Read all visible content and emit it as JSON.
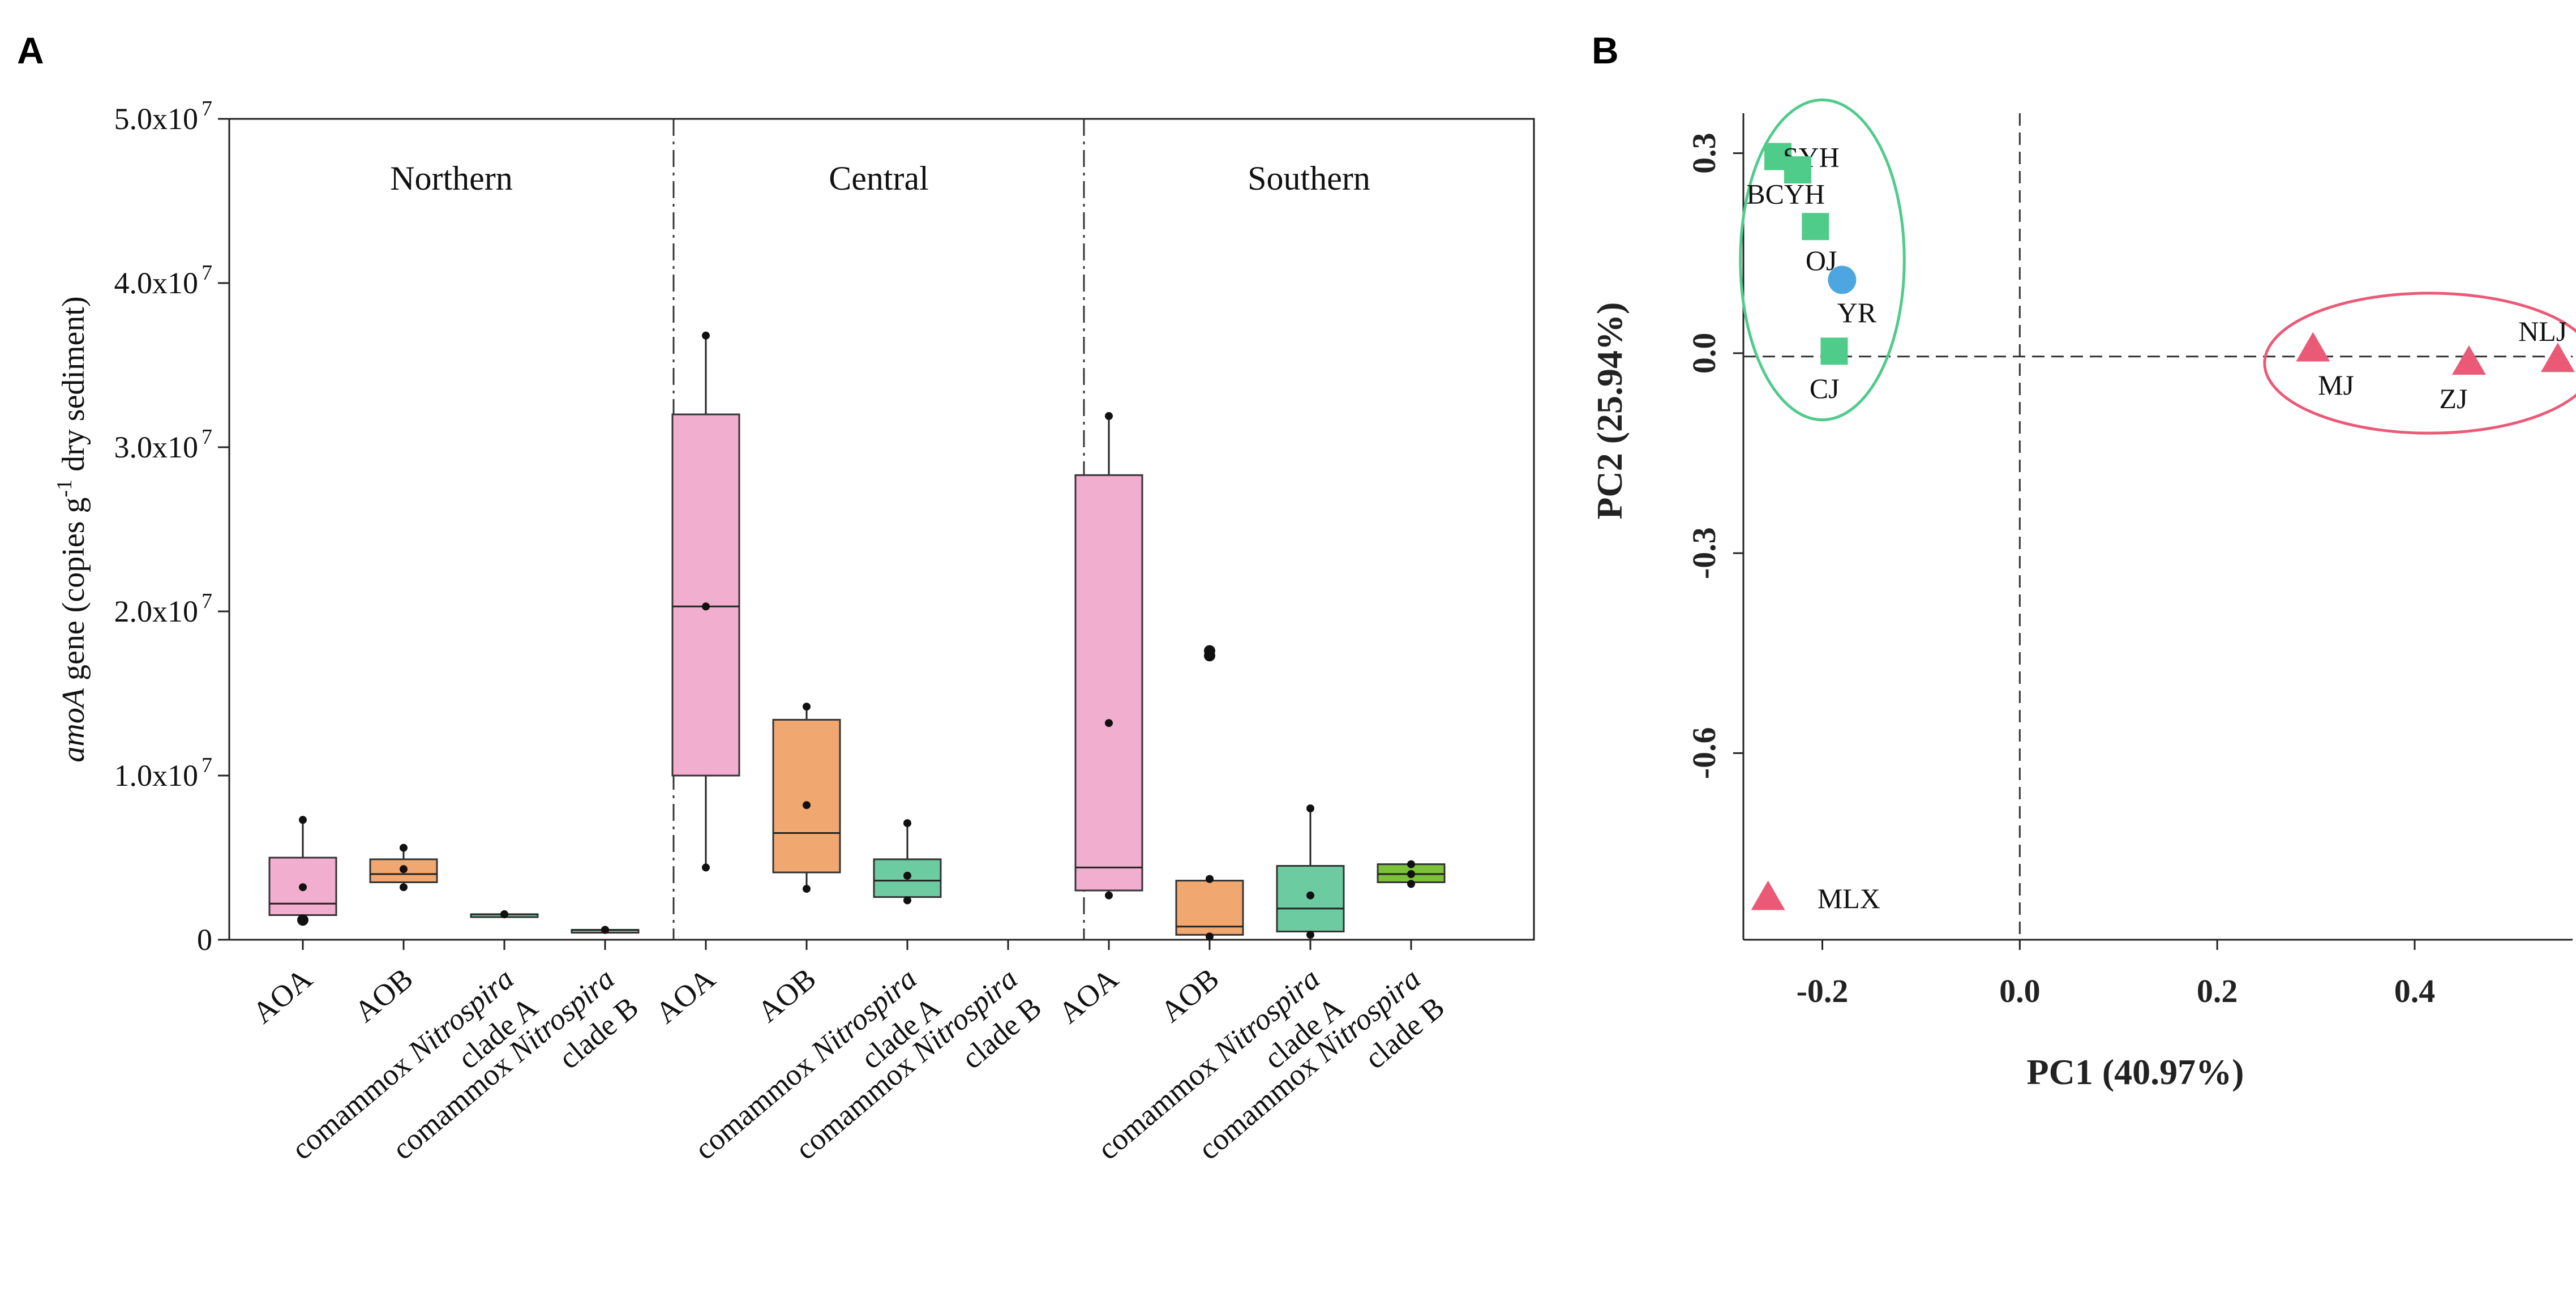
{
  "panel_labels": {
    "a": "A",
    "b": "B"
  },
  "chart_data": [
    {
      "type": "box",
      "panel": "A",
      "ylabel_parts": {
        "italic": "amoA",
        "gene": " gene  (copies g",
        "sup": "-1",
        "tail": " dry sediment)"
      },
      "ylim": [
        0,
        50000000
      ],
      "yticks": [
        {
          "value": 0,
          "label": "0",
          "exp": ""
        },
        {
          "value": 10000000,
          "label": "1.0x10",
          "exp": "7"
        },
        {
          "value": 20000000,
          "label": "2.0x10",
          "exp": "7"
        },
        {
          "value": 30000000,
          "label": "3.0x10",
          "exp": "7"
        },
        {
          "value": 40000000,
          "label": "4.0x10",
          "exp": "7"
        },
        {
          "value": 50000000,
          "label": "5.0x10",
          "exp": "7"
        }
      ],
      "regions": [
        "Northern",
        "Central",
        "Southern"
      ],
      "groups": [
        {
          "region": "Northern",
          "label": {
            "lines": [
              "AOA"
            ]
          },
          "color": "#f2aecf",
          "min": 1100000,
          "q1": 1500000,
          "median": 2200000,
          "q3": 5000000,
          "max": 7300000,
          "mean": 3200000,
          "outliers": [
            1200000
          ]
        },
        {
          "region": "Northern",
          "label": {
            "lines": [
              "AOB"
            ]
          },
          "color": "#f0a870",
          "min": 3200000,
          "q1": 3500000,
          "median": 4000000,
          "q3": 4900000,
          "max": 5600000,
          "mean": 4300000,
          "outliers": []
        },
        {
          "region": "Northern",
          "label": {
            "lines": [
              "comammox ",
              "clade A"
            ],
            "italic": "Nitrospira"
          },
          "color": "#6ccba0",
          "min": 1550000,
          "q1": 1550000,
          "median": 1550000,
          "q3": 1550000,
          "max": 1550000,
          "mean": 1550000,
          "outliers": []
        },
        {
          "region": "Northern",
          "label": {
            "lines": [
              "comammox ",
              "clade B"
            ],
            "italic": "Nitrospira"
          },
          "color": "#6ccba0",
          "min": 600000,
          "q1": 600000,
          "median": 600000,
          "q3": 600000,
          "max": 600000,
          "mean": 600000,
          "outliers": []
        },
        {
          "region": "Central",
          "label": {
            "lines": [
              "AOA"
            ]
          },
          "color": "#f2aecf",
          "min": 4400000,
          "q1": 10000000,
          "median": 20300000,
          "q3": 32000000,
          "max": 36800000,
          "mean": 20300000,
          "outliers": []
        },
        {
          "region": "Central",
          "label": {
            "lines": [
              "AOB"
            ]
          },
          "color": "#f0a870",
          "min": 3100000,
          "q1": 4100000,
          "median": 6500000,
          "q3": 13400000,
          "max": 14200000,
          "mean": 8200000,
          "outliers": []
        },
        {
          "region": "Central",
          "label": {
            "lines": [
              "comammox ",
              "clade A"
            ],
            "italic": "Nitrospira"
          },
          "color": "#6ccba0",
          "min": 2400000,
          "q1": 2600000,
          "median": 3600000,
          "q3": 4900000,
          "max": 7100000,
          "mean": 3900000,
          "outliers": []
        },
        {
          "region": "Central",
          "label": {
            "lines": [
              "comammox ",
              "clade B"
            ],
            "italic": "Nitrospira"
          },
          "color": "#6ccba0",
          "min": null,
          "q1": null,
          "median": null,
          "q3": null,
          "max": null,
          "mean": null,
          "outliers": []
        },
        {
          "region": "Southern",
          "label": {
            "lines": [
              "AOA"
            ]
          },
          "color": "#f2aecf",
          "min": 2700000,
          "q1": 3000000,
          "median": 4400000,
          "q3": 28300000,
          "max": 31900000,
          "mean": 13200000,
          "outliers": []
        },
        {
          "region": "Southern",
          "label": {
            "lines": [
              "AOB"
            ]
          },
          "color": "#f0a870",
          "min": 200000,
          "q1": 300000,
          "median": 800000,
          "q3": 3600000,
          "max": 3700000,
          "mean": 3700000,
          "outliers": [
            17300000,
            17600000
          ]
        },
        {
          "region": "Southern",
          "label": {
            "lines": [
              "comammox ",
              "clade A"
            ],
            "italic": "Nitrospira"
          },
          "color": "#6ccba0",
          "min": 300000,
          "q1": 500000,
          "median": 1900000,
          "q3": 4500000,
          "max": 8000000,
          "mean": 2700000,
          "outliers": []
        },
        {
          "region": "Southern",
          "label": {
            "lines": [
              "comammox ",
              "clade B"
            ],
            "italic": "Nitrospira"
          },
          "color": "#7cc13a",
          "min": 3400000,
          "q1": 3500000,
          "median": 4000000,
          "q3": 4600000,
          "max": 4600000,
          "mean": 4000000,
          "outliers": []
        }
      ]
    },
    {
      "type": "scatter",
      "panel": "B",
      "xlabel": "PC1  (40.97%)",
      "ylabel": "PC2  (25.94%)",
      "xlim": [
        -0.28,
        0.56
      ],
      "ylim": [
        -0.88,
        0.36
      ],
      "xticks": [
        {
          "value": -0.2,
          "label": "-0.2"
        },
        {
          "value": 0.0,
          "label": "0.0"
        },
        {
          "value": 0.2,
          "label": "0.2"
        },
        {
          "value": 0.4,
          "label": "0.4"
        }
      ],
      "yticks": [
        {
          "value": 0.3,
          "label": "0.3"
        },
        {
          "value": 0.0,
          "label": "0.0"
        },
        {
          "value": -0.3,
          "label": "-0.3"
        },
        {
          "value": -0.6,
          "label": "-0.6"
        }
      ],
      "reference_lines": {
        "x": 0,
        "y": -0.005
      },
      "points": [
        {
          "label": "SYH",
          "x": -0.245,
          "y": 0.295,
          "shape": "square",
          "color": "#4fcb8a",
          "label_dx": 0.005,
          "label_dy": 0.0
        },
        {
          "label": "",
          "x": -0.225,
          "y": 0.275,
          "shape": "square",
          "color": "#4fcb8a",
          "label_dx": 0,
          "label_dy": 0
        },
        {
          "label": "BCYH",
          "x": -0.207,
          "y": 0.19,
          "shape": "square",
          "color": "#4fcb8a",
          "label_dx": -0.07,
          "label_dy": 0.05
        },
        {
          "label": "OJ",
          "x": -0.207,
          "y": 0.14,
          "shape": "none",
          "color": "#000000",
          "label_dx": -0.01,
          "label_dy": 0.0
        },
        {
          "label": "YR",
          "x": -0.18,
          "y": 0.11,
          "shape": "circle",
          "color": "#4da6e0",
          "label_dx": -0.005,
          "label_dy": -0.048
        },
        {
          "label": "CJ",
          "x": -0.188,
          "y": 0.003,
          "shape": "square",
          "color": "#4fcb8a",
          "label_dx": -0.025,
          "label_dy": -0.055
        },
        {
          "label": "MJ",
          "x": 0.297,
          "y": 0.008,
          "shape": "triangle",
          "color": "#ea5a77",
          "label_dx": 0.005,
          "label_dy": -0.055
        },
        {
          "label": "ZJ",
          "x": 0.455,
          "y": -0.012,
          "shape": "triangle",
          "color": "#ea5a77",
          "label_dx": -0.03,
          "label_dy": -0.055
        },
        {
          "label": "NLJ",
          "x": 0.545,
          "y": -0.008,
          "shape": "triangle",
          "color": "#ea5a77",
          "label_dx": -0.04,
          "label_dy": 0.042
        },
        {
          "label": "MLX",
          "x": -0.255,
          "y": -0.815,
          "shape": "triangle",
          "color": "#ea5a77",
          "label_dx": 0.05,
          "label_dy": -0.002
        }
      ],
      "clusters": [
        {
          "name": "green-cluster",
          "cx": -0.2,
          "cy": 0.14,
          "rx": 0.083,
          "ry": 0.24,
          "color": "#4fcb8a"
        },
        {
          "name": "red-cluster",
          "cx": 0.415,
          "cy": -0.015,
          "rx": 0.167,
          "ry": 0.105,
          "color": "#ea5a77"
        }
      ]
    }
  ]
}
